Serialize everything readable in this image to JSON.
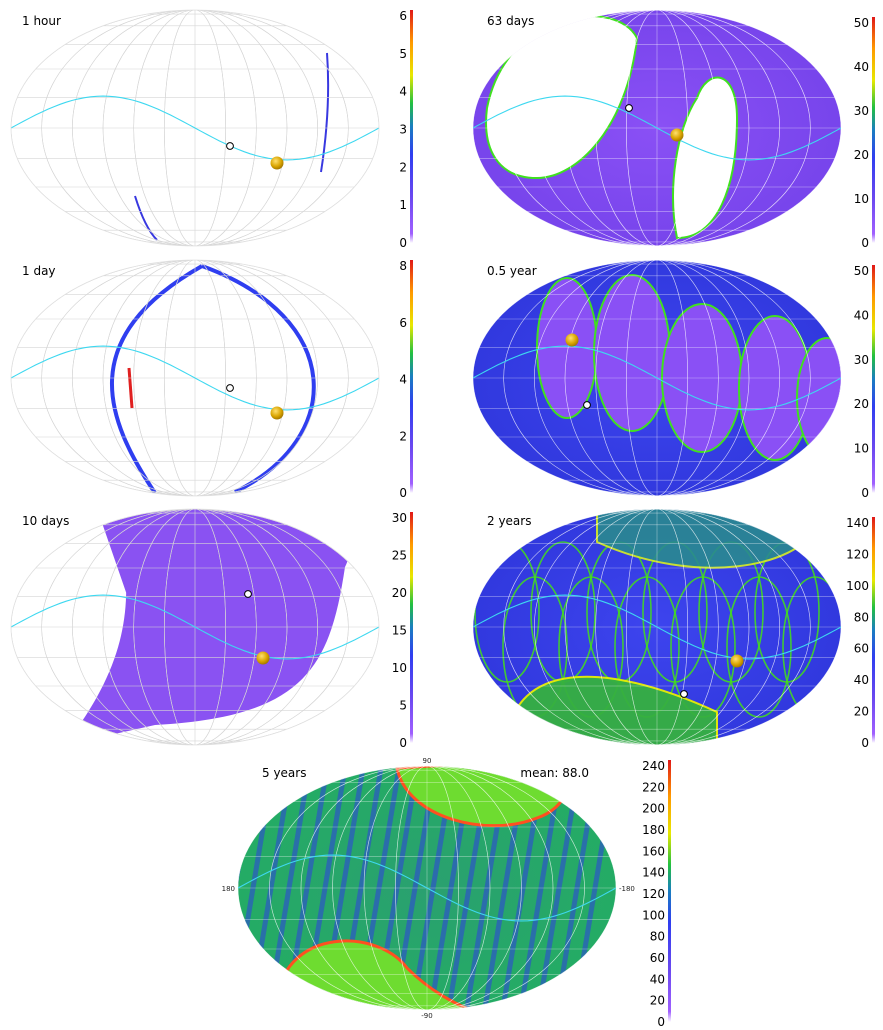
{
  "colorbar": {
    "stops": [
      "#ffffff",
      "#a060ff",
      "#7a4cf0",
      "#3a3cf0",
      "#2a5ae0",
      "#1aa060",
      "#40e020",
      "#e8e000",
      "#ff8a00",
      "#e02020"
    ]
  },
  "colors": {
    "ecliptic": "#3ed8f0",
    "sun": "#d9a400",
    "earth_marker": "#ffffff",
    "grid": "#cfcfcf"
  },
  "panels": [
    {
      "id": "p1",
      "label": "1 hour",
      "style": "blank",
      "colorbar_ticks": [
        "0",
        "1",
        "2",
        "3",
        "4",
        "5",
        "6"
      ],
      "colorbar_max": 6
    },
    {
      "id": "p2",
      "label": "63 days",
      "style": "purple",
      "colorbar_ticks": [
        "0",
        "10",
        "20",
        "30",
        "40",
        "50"
      ],
      "colorbar_max": 50
    },
    {
      "id": "p3",
      "label": "1 day",
      "style": "blank",
      "colorbar_ticks": [
        "0",
        "2",
        "4",
        "6",
        "8"
      ],
      "colorbar_max": 8
    },
    {
      "id": "p4",
      "label": "0.5 year",
      "style": "blue",
      "colorbar_ticks": [
        "0",
        "10",
        "20",
        "30",
        "40",
        "50"
      ],
      "colorbar_max": 50
    },
    {
      "id": "p5",
      "label": "10 days",
      "style": "blank",
      "colorbar_ticks": [
        "0",
        "5",
        "10",
        "15",
        "20",
        "25",
        "30"
      ],
      "colorbar_max": 30
    },
    {
      "id": "p6",
      "label": "2 years",
      "style": "blue",
      "colorbar_ticks": [
        "0",
        "20",
        "40",
        "60",
        "80",
        "100",
        "120",
        "140"
      ],
      "colorbar_max": 140
    },
    {
      "id": "p7",
      "label": "5 years",
      "style": "green",
      "mean": "mean: 88.0",
      "axis": {
        "top": "90",
        "bottom": "-90",
        "left": "180",
        "right": "-180"
      },
      "colorbar_ticks": [
        "0",
        "20",
        "40",
        "60",
        "80",
        "100",
        "120",
        "140",
        "160",
        "180",
        "200",
        "220",
        "240"
      ],
      "colorbar_max": 240
    }
  ]
}
